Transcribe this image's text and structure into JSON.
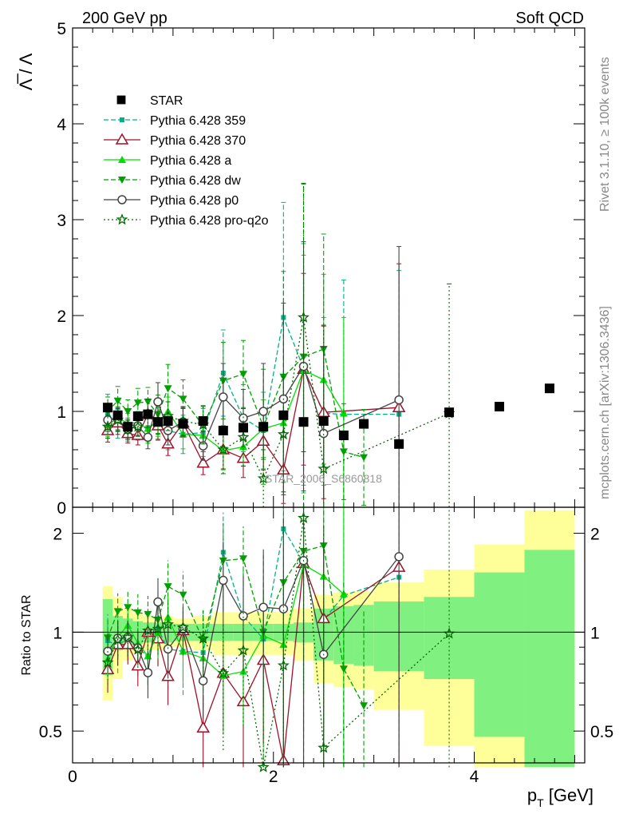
{
  "header": {
    "left": "200 GeV pp",
    "right": "Soft QCD"
  },
  "side_labels": {
    "rivet": "Rivet 3.1.10, ≥ 100k events",
    "mcplots": "mcplots.cern.ch [arXiv:1306.3436]"
  },
  "watermark": "STAR_2006_S6860818",
  "chart_data": [
    {
      "type": "line",
      "title": "",
      "ylabel": "Λ̅ / Λ",
      "xlabel": "p_T [GeV]",
      "xlim": [
        0,
        5.1
      ],
      "ylim": [
        0,
        5
      ],
      "yticks": [
        0,
        1,
        2,
        3,
        4,
        5
      ],
      "xticks": [
        0,
        2,
        4
      ],
      "legend_position": "top-left",
      "series": [
        {
          "name": "STAR",
          "style": "data",
          "color": "#000000",
          "x": [
            0.35,
            0.45,
            0.55,
            0.65,
            0.75,
            0.85,
            0.95,
            1.1,
            1.3,
            1.5,
            1.7,
            1.9,
            2.1,
            2.3,
            2.5,
            2.7,
            2.9,
            3.25,
            3.75,
            4.25,
            4.75
          ],
          "y": [
            1.04,
            0.96,
            0.84,
            0.95,
            0.97,
            0.89,
            0.9,
            0.87,
            0.9,
            0.8,
            0.83,
            0.84,
            0.96,
            0.89,
            0.9,
            0.75,
            0.87,
            0.66,
            0.99,
            1.05,
            1.24
          ]
        },
        {
          "name": "Pythia 6.428 359",
          "color": "#00b386",
          "dash": "6,3",
          "marker": "square-small",
          "x": [
            0.35,
            0.45,
            0.55,
            0.65,
            0.75,
            0.85,
            0.95,
            1.1,
            1.3,
            1.5,
            1.7,
            1.9,
            2.1,
            2.3,
            2.5,
            2.7,
            3.25
          ],
          "y": [
            0.98,
            0.87,
            0.81,
            0.85,
            0.82,
            0.91,
            0.8,
            0.76,
            0.78,
            1.4,
            0.93,
            0.8,
            1.98,
            1.45,
            0.98,
            0.97,
            0.97
          ],
          "err": [
            0.2,
            0.15,
            0.12,
            0.15,
            0.15,
            0.2,
            0.2,
            0.2,
            0.25,
            0.45,
            0.35,
            0.4,
            1.2,
            1.3,
            1.0,
            1.4,
            1.5
          ]
        },
        {
          "name": "Pythia 6.428 370",
          "color": "#a0102a",
          "dash": "",
          "marker": "triangle-open",
          "x": [
            0.35,
            0.45,
            0.55,
            0.65,
            0.75,
            0.85,
            0.95,
            1.1,
            1.3,
            1.5,
            1.7,
            1.9,
            2.1,
            2.3,
            2.5,
            3.25
          ],
          "y": [
            0.8,
            0.88,
            0.77,
            0.75,
            0.97,
            0.85,
            0.66,
            0.88,
            0.46,
            0.6,
            0.51,
            0.69,
            0.39,
            1.44,
            0.99,
            1.04
          ],
          "err": [
            0.12,
            0.12,
            0.1,
            0.1,
            0.15,
            0.15,
            0.12,
            0.15,
            0.12,
            0.2,
            0.2,
            0.3,
            0.35,
            1.0,
            0.9,
            1.5
          ]
        },
        {
          "name": "Pythia 6.428 a",
          "color": "#00e000",
          "dash": "",
          "marker": "triangle-filled",
          "x": [
            0.35,
            0.45,
            0.55,
            0.65,
            0.75,
            0.85,
            0.95,
            1.1,
            1.3,
            1.5,
            1.7,
            1.9,
            2.1,
            2.3,
            2.5,
            2.7
          ],
          "y": [
            0.86,
            0.93,
            0.88,
            0.88,
            0.82,
            0.89,
            1.0,
            0.76,
            0.75,
            0.59,
            0.63,
            0.82,
            0.88,
            1.43,
            1.33,
            0.98
          ],
          "err": [
            0.12,
            0.12,
            0.1,
            0.1,
            0.15,
            0.15,
            0.15,
            0.15,
            0.15,
            0.2,
            0.2,
            0.3,
            0.5,
            1.2,
            1.1,
            1.0
          ]
        },
        {
          "name": "Pythia 6.428 dw",
          "color": "#00a000",
          "dash": "6,3",
          "marker": "triangle-down",
          "x": [
            0.35,
            0.45,
            0.55,
            0.65,
            0.75,
            0.85,
            0.95,
            1.1,
            1.3,
            1.5,
            1.7,
            1.9,
            2.1,
            2.3,
            2.5,
            2.7,
            2.9
          ],
          "y": [
            1.0,
            1.11,
            1.0,
            1.09,
            1.1,
            0.97,
            1.24,
            1.13,
            0.85,
            1.32,
            1.39,
            0.84,
            1.36,
            1.57,
            1.65,
            0.58,
            0.52
          ],
          "err": [
            0.15,
            0.15,
            0.12,
            0.15,
            0.15,
            0.2,
            0.25,
            0.2,
            0.2,
            0.4,
            0.35,
            0.6,
            1.1,
            1.8,
            1.2,
            0.5,
            0.5
          ]
        },
        {
          "name": "Pythia 6.428 p0",
          "color": "#444444",
          "dash": "",
          "marker": "circle-open",
          "x": [
            0.35,
            0.45,
            0.55,
            0.65,
            0.75,
            0.85,
            0.95,
            1.1,
            1.3,
            1.5,
            1.7,
            1.9,
            2.1,
            2.3,
            2.5,
            3.25
          ],
          "y": [
            0.91,
            0.92,
            0.81,
            0.85,
            0.73,
            1.1,
            0.8,
            0.89,
            0.64,
            1.15,
            0.93,
            1.0,
            1.13,
            1.47,
            0.77,
            1.12
          ],
          "err": [
            0.12,
            0.12,
            0.1,
            0.1,
            0.12,
            0.2,
            0.15,
            0.15,
            0.15,
            0.35,
            0.3,
            0.5,
            1.0,
            1.3,
            0.9,
            1.6
          ]
        },
        {
          "name": "Pythia 6.428 pro-q2o",
          "color": "#006a00",
          "dash": "2,3",
          "marker": "star-open",
          "x": [
            0.35,
            0.45,
            0.55,
            0.65,
            0.75,
            0.85,
            0.95,
            1.1,
            1.3,
            1.5,
            1.7,
            1.9,
            2.1,
            2.3,
            2.5,
            3.75
          ],
          "y": [
            0.84,
            0.91,
            0.81,
            0.84,
            0.98,
            0.91,
            0.95,
            0.9,
            0.86,
            0.6,
            0.73,
            0.3,
            0.76,
            1.98,
            0.4,
            0.98
          ],
          "err": [
            0.12,
            0.12,
            0.1,
            0.1,
            0.15,
            0.15,
            0.15,
            0.15,
            0.2,
            0.25,
            0.3,
            0.3,
            0.6,
            1.4,
            1.5,
            1.35
          ]
        }
      ]
    },
    {
      "type": "line",
      "title": "",
      "ylabel": "Ratio to STAR",
      "xlabel": "p_T [GeV]",
      "xlim": [
        0,
        5.1
      ],
      "ylim": [
        0.4,
        2.4
      ],
      "yscale": "log",
      "yticks": [
        0.5,
        1,
        2
      ],
      "reference_line": 1,
      "bands": {
        "x_edges": [
          0.3,
          0.4,
          0.5,
          0.6,
          0.7,
          0.8,
          0.9,
          1.0,
          1.2,
          1.4,
          1.6,
          1.8,
          2.0,
          2.2,
          2.4,
          2.6,
          2.8,
          3.0,
          3.5,
          4.0,
          4.5,
          5.0
        ],
        "inner_color": "#80f080",
        "outer_color": "#ffff99",
        "inner_half": [
          0.26,
          0.12,
          0.1,
          0.08,
          0.07,
          0.07,
          0.07,
          0.06,
          0.06,
          0.06,
          0.06,
          0.06,
          0.06,
          0.07,
          0.18,
          0.2,
          0.21,
          0.24,
          0.28,
          0.52,
          0.78
        ],
        "outer_half": [
          0.38,
          0.28,
          0.18,
          0.14,
          0.12,
          0.12,
          0.12,
          0.1,
          0.12,
          0.15,
          0.15,
          0.15,
          0.15,
          0.18,
          0.3,
          0.32,
          0.33,
          0.42,
          0.55,
          0.85,
          1.35
        ]
      }
    }
  ]
}
